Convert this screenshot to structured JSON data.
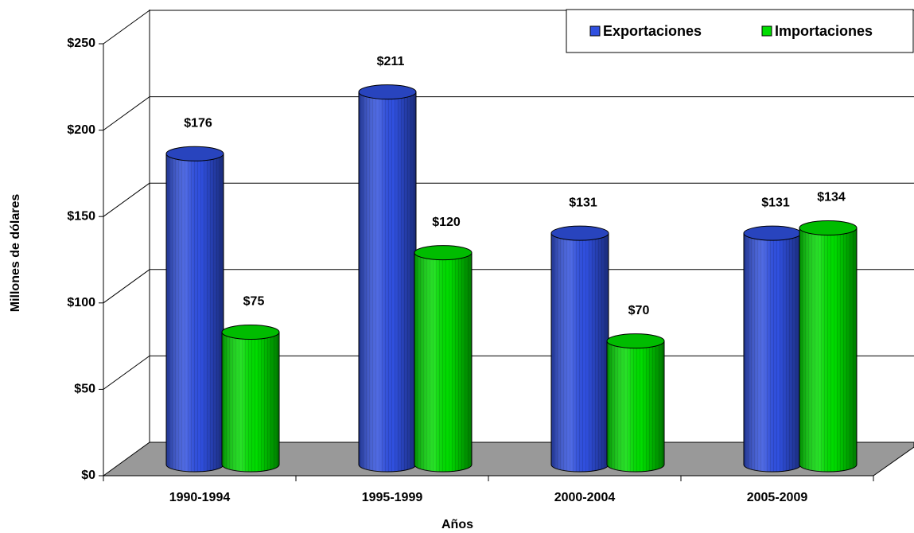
{
  "chart_data": {
    "type": "cylinder-bar",
    "x_label": "Años",
    "y_label": "Millones de dólares",
    "categories": [
      "1990-1994",
      "1995-1999",
      "2000-2004",
      "2005-2009"
    ],
    "series": [
      {
        "name": "Exportaciones",
        "color": "#3050e0",
        "values": [
          176,
          211,
          131,
          131
        ],
        "value_labels": [
          "$176",
          "$211",
          "$131",
          "$131"
        ]
      },
      {
        "name": "Importaciones",
        "color": "#00dd00",
        "values": [
          75,
          120,
          70,
          134
        ],
        "value_labels": [
          "$75",
          "$120",
          "$70",
          "$134"
        ]
      }
    ],
    "ylim": [
      0,
      250
    ],
    "yticks": [
      {
        "value": 0,
        "label": "$0"
      },
      {
        "value": 50,
        "label": "$50"
      },
      {
        "value": 100,
        "label": "$100"
      },
      {
        "value": 150,
        "label": "$150"
      },
      {
        "value": 200,
        "label": "$200"
      },
      {
        "value": 250,
        "label": "$250"
      }
    ],
    "grid": true,
    "legend": "top-right"
  }
}
